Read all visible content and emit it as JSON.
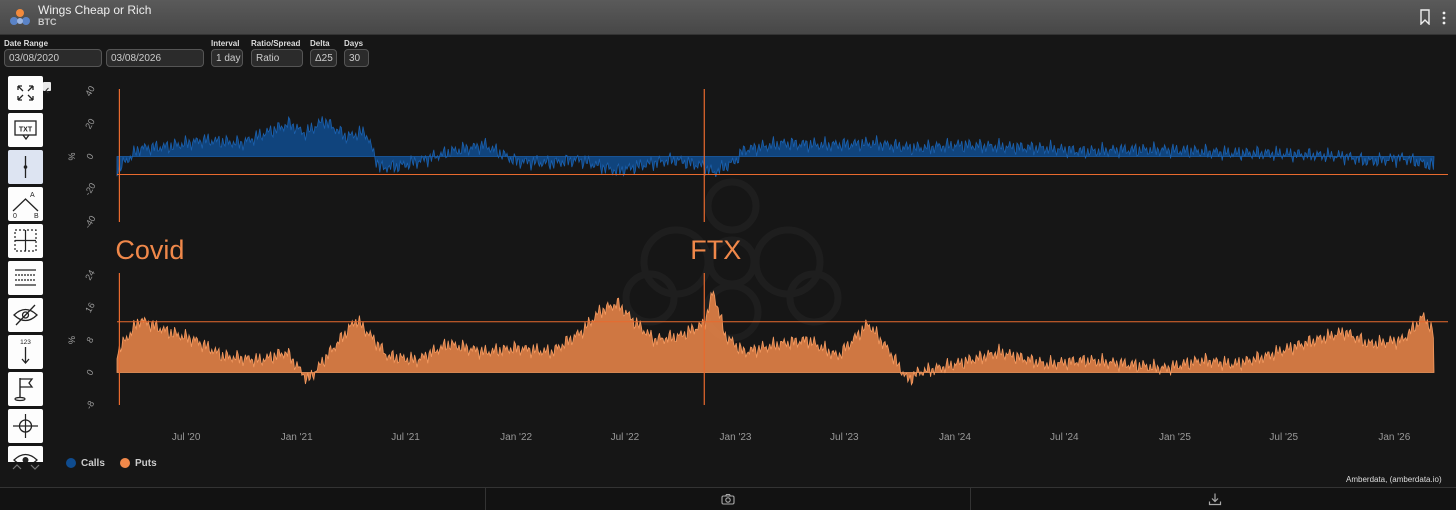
{
  "app": {
    "title": "Wings Cheap or Rich",
    "subtitle": "BTC"
  },
  "controls": {
    "date_range_label": "Date Range",
    "start_date": "03/08/2020",
    "end_date": "03/08/2026",
    "interval_label": "Interval",
    "interval_value": "1 day",
    "ratio_spread_label": "Ratio/Spread",
    "ratio_spread_value": "Ratio",
    "delta_label": "Delta",
    "delta_value": "Δ25",
    "days_label": "Days",
    "days_value": "30"
  },
  "tools": [
    "fullscreen-icon",
    "text-annotation-icon",
    "vertical-line-icon",
    "angle-measure-icon",
    "crosshair-grid-icon",
    "table-lines-icon",
    "hide-eye-icon",
    "number-arrow-icon",
    "flag-icon",
    "move-crosshair-icon",
    "eye-icon"
  ],
  "legend": {
    "calls_label": "Calls",
    "puts_label": "Puts",
    "calls_color": "#0f4c8f",
    "puts_color": "#f0884a"
  },
  "source": "Amberdata, (amberdata.io)",
  "chart_data": [
    {
      "type": "area",
      "series_name": "Calls",
      "ylabel": "%",
      "ylim": [
        -40,
        40
      ],
      "yticks": [
        "40",
        "20",
        "0",
        "-20",
        "-40"
      ],
      "reference_line": -11,
      "x": [
        "2020-03-08",
        "2020-04-15",
        "2020-06-01",
        "2020-08-01",
        "2020-10-01",
        "2020-11-15",
        "2020-12-20",
        "2021-01-15",
        "2021-02-15",
        "2021-03-25",
        "2021-04-25",
        "2021-05-19",
        "2021-06-20",
        "2021-08-01",
        "2021-09-15",
        "2021-11-10",
        "2022-01-01",
        "2022-03-01",
        "2022-04-15",
        "2022-05-12",
        "2022-06-18",
        "2022-08-15",
        "2022-09-20",
        "2022-11-09",
        "2022-11-25",
        "2022-12-31",
        "2023-01-15",
        "2023-03-20",
        "2023-06-01",
        "2023-08-20",
        "2023-10-25",
        "2024-01-10",
        "2024-03-15",
        "2024-06-01",
        "2024-08-05",
        "2024-10-01",
        "2024-12-15",
        "2025-02-15",
        "2025-04-10",
        "2025-06-01",
        "2025-08-15",
        "2025-10-10",
        "2025-11-20",
        "2026-01-15",
        "2026-03-08"
      ],
      "values": [
        -8,
        5,
        6,
        10,
        8,
        15,
        20,
        14,
        22,
        12,
        15,
        -7,
        -6,
        -2,
        3,
        7,
        -3,
        -4,
        -2,
        -5,
        -9,
        -4,
        -2,
        -6,
        -10,
        -3,
        4,
        8,
        7,
        8,
        5,
        7,
        6,
        5,
        3,
        4,
        4,
        3,
        2,
        2,
        1,
        0,
        -3,
        -1,
        -6
      ]
    },
    {
      "type": "area",
      "series_name": "Puts",
      "ylabel": "%",
      "ylim": [
        -8,
        24
      ],
      "yticks": [
        "24",
        "16",
        "8",
        "0",
        "-8"
      ],
      "reference_line": 12.5,
      "x": [
        "2020-03-08",
        "2020-04-15",
        "2020-06-01",
        "2020-07-15",
        "2020-09-01",
        "2020-11-01",
        "2020-12-15",
        "2021-01-20",
        "2021-02-20",
        "2021-04-10",
        "2021-05-10",
        "2021-06-01",
        "2021-07-20",
        "2021-09-10",
        "2021-11-10",
        "2022-01-01",
        "2022-03-01",
        "2022-04-20",
        "2022-05-20",
        "2022-06-18",
        "2022-07-20",
        "2022-08-20",
        "2022-10-01",
        "2022-11-10",
        "2022-11-25",
        "2022-12-15",
        "2023-01-15",
        "2023-03-15",
        "2023-05-01",
        "2023-06-20",
        "2023-08-10",
        "2023-09-15",
        "2023-10-15",
        "2023-11-01",
        "2024-01-01",
        "2024-03-15",
        "2024-06-01",
        "2024-08-05",
        "2024-10-15",
        "2024-12-15",
        "2025-02-15",
        "2025-04-10",
        "2025-06-01",
        "2025-08-01",
        "2025-10-10",
        "2025-11-20",
        "2026-01-15",
        "2026-02-20",
        "2026-03-08"
      ],
      "values": [
        5,
        13,
        10,
        8,
        4,
        3,
        5,
        -2,
        4,
        13,
        8,
        4,
        3,
        7,
        5,
        6,
        5,
        10,
        15,
        17,
        12,
        8,
        9,
        12,
        20,
        9,
        5,
        7,
        8,
        4,
        12,
        5,
        -2,
        0,
        2,
        5,
        2,
        3,
        2,
        1,
        3,
        2,
        4,
        7,
        10,
        7,
        8,
        14,
        9
      ]
    }
  ],
  "x_axis": {
    "ticks": [
      {
        "date": "2020-07-01",
        "label": "Jul '20"
      },
      {
        "date": "2021-01-01",
        "label": "Jan '21"
      },
      {
        "date": "2021-07-01",
        "label": "Jul '21"
      },
      {
        "date": "2022-01-01",
        "label": "Jan '22"
      },
      {
        "date": "2022-07-01",
        "label": "Jul '22"
      },
      {
        "date": "2023-01-01",
        "label": "Jan '23"
      },
      {
        "date": "2023-07-01",
        "label": "Jul '23"
      },
      {
        "date": "2024-01-01",
        "label": "Jan '24"
      },
      {
        "date": "2024-07-01",
        "label": "Jul '24"
      },
      {
        "date": "2025-01-01",
        "label": "Jan '25"
      },
      {
        "date": "2025-07-01",
        "label": "Jul '25"
      },
      {
        "date": "2026-01-01",
        "label": "Jan '26"
      }
    ]
  },
  "annotations": [
    {
      "date": "2020-03-12",
      "label": "Covid"
    },
    {
      "date": "2022-11-10",
      "label": "FTX"
    }
  ]
}
